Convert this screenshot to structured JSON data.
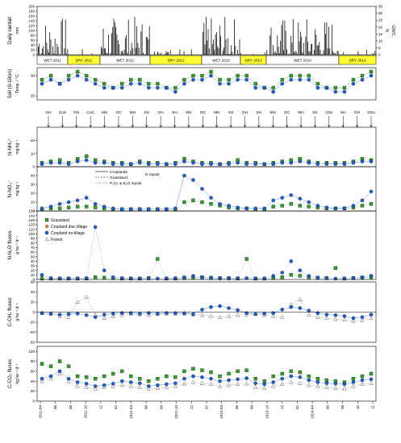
{
  "figure": {
    "x_ticks": [
      "2011-04",
      "06",
      "08",
      "2011-10",
      "12",
      "02",
      "2012-04",
      "06",
      "08",
      "2012-10",
      "12",
      "02",
      "2013-04",
      "06",
      "08",
      "2013-10",
      "12",
      "02",
      "2014-04",
      "06",
      "08",
      "10",
      "11"
    ],
    "season_bands": [
      {
        "label": "WET 2011",
        "type": "wet"
      },
      {
        "label": "DRY 2011",
        "type": "dry"
      },
      {
        "label": "WET 2012",
        "type": "wet"
      },
      {
        "label": "DRY 2012",
        "type": "dry"
      },
      {
        "label": "WET 2013",
        "type": "wet"
      },
      {
        "label": "DRY 2013",
        "type": "dry"
      },
      {
        "label": "WET 2014",
        "type": "wet"
      },
      {
        "label": "DRY 2014",
        "type": "dry"
      }
    ],
    "operations": [
      "GH",
      "CoS",
      "GH",
      "CoC",
      "MS",
      "GC",
      "MH",
      "SS",
      "GH",
      "SH",
      "MS",
      "GC",
      "MH",
      "SS",
      "GH",
      "SH",
      "MS",
      "GC",
      "MH",
      "SS",
      "SSo",
      "SH",
      "GH",
      "DSo"
    ],
    "legend": [
      {
        "name": "Grassland",
        "color": "#33a02c",
        "symbol": "square"
      },
      {
        "name": "Cropland disc tillage",
        "color": "#e07b2e",
        "symbol": "diamond"
      },
      {
        "name": "Cropland no-tillage",
        "color": "#1f5fd1",
        "symbol": "circle"
      },
      {
        "name": "Forest",
        "color": "#666666",
        "symbol": "triangle"
      }
    ],
    "input_legend": {
      "croplands": "Croplands",
      "grassland": "Grassland",
      "n_inputs": "N inputs",
      "pk_inputs": "P₂O₅ & K₂O inputs"
    },
    "colors": {
      "wet_band": "#ffffff",
      "dry_band": "#ffff33",
      "grass": "#33a02c",
      "disc": "#e07b2e",
      "notill": "#1f5fd1",
      "forest": "#666666"
    }
  },
  "chart_data": [
    {
      "type": "bar",
      "id": "rainfall",
      "ylabel": "Daily rainfall",
      "yunit": "mm",
      "ylim": [
        0,
        200
      ],
      "y2label": "GWC",
      "y2unit": "%",
      "y2lim": [
        0,
        35
      ],
      "yticks": [
        "0",
        "20",
        "40",
        "60",
        "80",
        "100",
        "120",
        "140",
        "160",
        "180",
        "200"
      ],
      "y2ticks": [
        "0",
        "5",
        "10",
        "15",
        "20",
        "25",
        "30",
        "35"
      ]
    },
    {
      "type": "scatter",
      "id": "soil_temp",
      "ylabel": "Soil (0-10cm)",
      "yunit": "Temp. / °C",
      "ylim": [
        24,
        32
      ],
      "yticks": [
        "25",
        "30"
      ]
    },
    {
      "type": "scatter",
      "id": "nh4",
      "ylabel": "N-NH₄⁺",
      "yunit": "mg kg⁻¹",
      "ylim": [
        0,
        30
      ],
      "yticks": [
        "0",
        "10",
        "20"
      ]
    },
    {
      "type": "scatter",
      "id": "no3",
      "ylabel": "N-NO₃⁻",
      "yunit": "mg kg⁻¹",
      "ylim": [
        0,
        50
      ],
      "yticks": [
        "0",
        "10",
        "20",
        "30",
        "40"
      ]
    },
    {
      "type": "scatter",
      "id": "n2o",
      "ylabel": "N-N₂O fluxes",
      "yunit": "g ha⁻¹ d⁻¹",
      "ylim": [
        0,
        150
      ],
      "yticks": [
        "0",
        "10",
        "20",
        "30",
        "40",
        "50",
        "60",
        "70",
        "80",
        "90",
        "100",
        "110",
        "120",
        "130",
        "140",
        "150"
      ]
    },
    {
      "type": "scatter",
      "id": "ch4",
      "ylabel": "C-CH₄ fluxes",
      "yunit": "g ha⁻¹ d⁻¹",
      "ylim": [
        -60,
        60
      ],
      "yticks": [
        "-60",
        "-40",
        "-20",
        "0",
        "20",
        "40",
        "60"
      ]
    },
    {
      "type": "scatter",
      "id": "co2",
      "ylabel": "C-CO₂ fluxes",
      "yunit": "kg ha⁻¹ d⁻¹",
      "ylim": [
        0,
        110
      ],
      "yticks": [
        "0",
        "20",
        "40",
        "60",
        "80",
        "100"
      ]
    }
  ],
  "series_values": {
    "t_grass": [
      29,
      30,
      28,
      30,
      31,
      30,
      29,
      28,
      27,
      28,
      29,
      29,
      28,
      28,
      27,
      27,
      29,
      30,
      30,
      31,
      29,
      29,
      30,
      30,
      28,
      27,
      27,
      29,
      30,
      30,
      30,
      28,
      27,
      27,
      27,
      29,
      30,
      31
    ],
    "t_notill": [
      28,
      29,
      28,
      29,
      30,
      29,
      28,
      27,
      27,
      27,
      28,
      28,
      27,
      27,
      27,
      26,
      28,
      29,
      29,
      30,
      28,
      28,
      29,
      29,
      27,
      27,
      26,
      28,
      29,
      29,
      29,
      27,
      27,
      26,
      26,
      28,
      29,
      30
    ],
    "nh4_grass": [
      3,
      4,
      5,
      3,
      6,
      8,
      5,
      4,
      3,
      3,
      2,
      4,
      3,
      3,
      2,
      3,
      6,
      4,
      3,
      3,
      2,
      3,
      5,
      3,
      3,
      2,
      3,
      4,
      5,
      6,
      4,
      3,
      3,
      3,
      3,
      4,
      6,
      5
    ],
    "nh4_notill": [
      2,
      3,
      3,
      2,
      4,
      5,
      3,
      3,
      2,
      2,
      2,
      3,
      2,
      2,
      2,
      2,
      4,
      3,
      2,
      2,
      2,
      2,
      3,
      2,
      2,
      2,
      2,
      3,
      3,
      4,
      3,
      2,
      2,
      2,
      2,
      3,
      4,
      4
    ],
    "no3_notill": [
      3,
      5,
      8,
      10,
      12,
      15,
      8,
      5,
      3,
      2,
      2,
      2,
      2,
      2,
      2,
      3,
      40,
      35,
      25,
      15,
      8,
      6,
      4,
      3,
      3,
      3,
      12,
      15,
      18,
      14,
      10,
      6,
      4,
      3,
      3,
      6,
      12,
      22
    ],
    "no3_grass": [
      2,
      3,
      3,
      4,
      5,
      5,
      4,
      3,
      2,
      2,
      2,
      2,
      2,
      2,
      2,
      2,
      10,
      12,
      10,
      8,
      6,
      4,
      3,
      3,
      2,
      2,
      5,
      6,
      8,
      6,
      5,
      4,
      3,
      3,
      3,
      4,
      6,
      8
    ],
    "n2o_notill": [
      10,
      3,
      2,
      2,
      2,
      3,
      115,
      20,
      5,
      3,
      2,
      2,
      2,
      2,
      2,
      3,
      5,
      8,
      4,
      3,
      2,
      2,
      3,
      3,
      2,
      2,
      8,
      15,
      40,
      20,
      8,
      4,
      3,
      2,
      2,
      3,
      5,
      8
    ],
    "n2o_grass": [
      2,
      2,
      2,
      2,
      2,
      2,
      5,
      4,
      3,
      2,
      2,
      2,
      3,
      45,
      2,
      2,
      3,
      4,
      5,
      4,
      3,
      3,
      2,
      45,
      2,
      2,
      3,
      5,
      10,
      8,
      5,
      4,
      3,
      25,
      2,
      3,
      4,
      5
    ],
    "ch4_notill": [
      -2,
      -3,
      -5,
      -4,
      -3,
      -6,
      -10,
      -5,
      -3,
      -2,
      -2,
      -3,
      -2,
      -3,
      -2,
      -2,
      -3,
      -4,
      5,
      10,
      12,
      8,
      4,
      -2,
      -4,
      -3,
      -2,
      5,
      10,
      8,
      3,
      -2,
      -5,
      -6,
      -8,
      -12,
      -10,
      -5
    ],
    "ch4_forest": [
      -2,
      -4,
      -8,
      -10,
      20,
      30,
      -5,
      -12,
      -8,
      -6,
      -4,
      -5,
      -6,
      -4,
      -3,
      -4,
      -2,
      -5,
      -6,
      -8,
      -10,
      -8,
      -6,
      -5,
      -4,
      -6,
      -8,
      -10,
      15,
      25,
      -5,
      -10,
      -12,
      -14,
      -15,
      -18,
      -16,
      -12
    ],
    "co2_grass": [
      75,
      70,
      80,
      70,
      50,
      48,
      45,
      50,
      55,
      60,
      50,
      45,
      40,
      45,
      50,
      48,
      60,
      65,
      62,
      58,
      50,
      55,
      60,
      62,
      45,
      40,
      50,
      55,
      60,
      58,
      50,
      45,
      42,
      40,
      38,
      45,
      50,
      55
    ],
    "co2_notill": [
      45,
      50,
      60,
      45,
      38,
      35,
      30,
      32,
      35,
      40,
      38,
      36,
      30,
      32,
      34,
      36,
      45,
      50,
      48,
      45,
      40,
      42,
      44,
      46,
      36,
      34,
      38,
      45,
      50,
      48,
      42,
      38,
      36,
      35,
      34,
      38,
      42,
      44
    ],
    "co2_forest": [
      40,
      45,
      55,
      40,
      30,
      28,
      25,
      28,
      30,
      32,
      30,
      28,
      25,
      26,
      28,
      30,
      35,
      38,
      36,
      34,
      30,
      32,
      34,
      35,
      28,
      26,
      30,
      34,
      38,
      36,
      32,
      30,
      28,
      26,
      25,
      30,
      34,
      36
    ]
  }
}
